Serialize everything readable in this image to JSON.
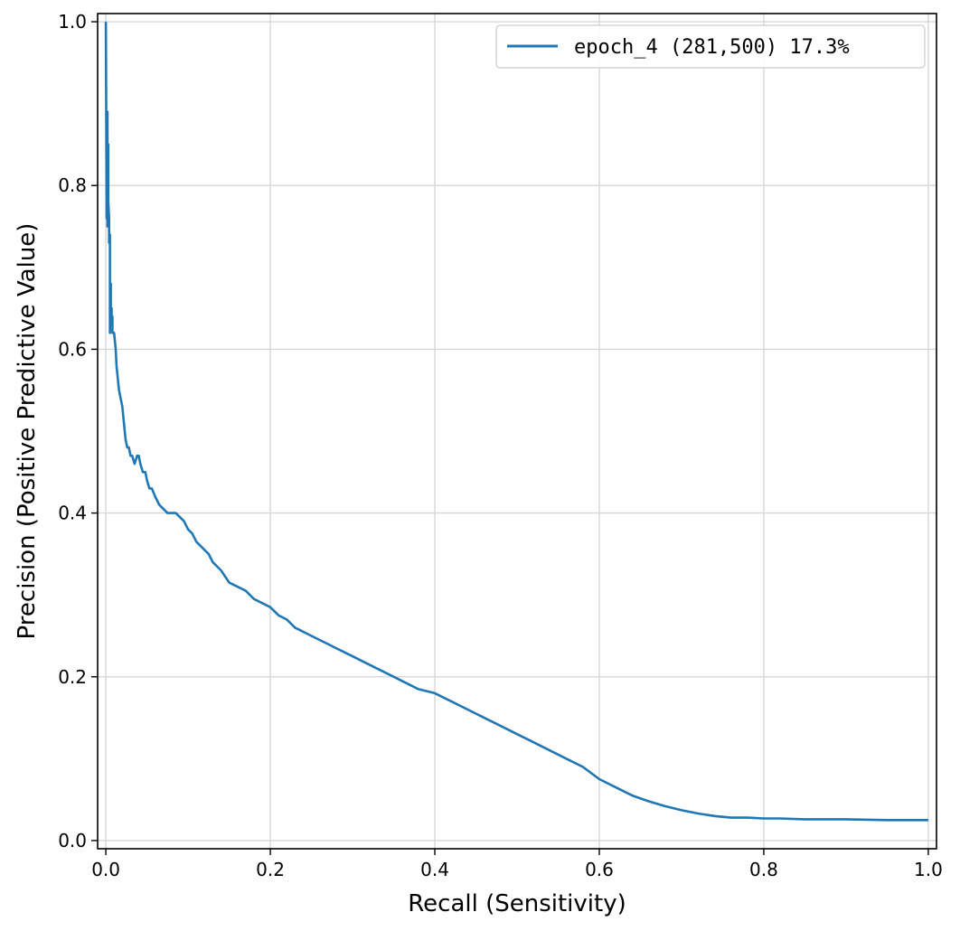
{
  "chart_data": {
    "type": "line",
    "title": "",
    "xlabel": "Recall (Sensitivity)",
    "ylabel": "Precision (Positive Predictive Value)",
    "xlim": [
      -0.01,
      1.01
    ],
    "ylim": [
      -0.01,
      1.01
    ],
    "xticks": [
      0.0,
      0.2,
      0.4,
      0.6,
      0.8,
      1.0
    ],
    "xtick_labels": [
      "0.0",
      "0.2",
      "0.4",
      "0.6",
      "0.8",
      "1.0"
    ],
    "yticks": [
      0.0,
      0.2,
      0.4,
      0.6,
      0.8,
      1.0
    ],
    "ytick_labels": [
      "0.0",
      "0.2",
      "0.4",
      "0.6",
      "0.8",
      "1.0"
    ],
    "grid": true,
    "legend": "top-right",
    "series": [
      {
        "name": "epoch_4 (281,500) 17.3%",
        "color": "#1f77b4",
        "x": [
          0.0,
          0.001,
          0.002,
          0.002,
          0.003,
          0.003,
          0.004,
          0.004,
          0.005,
          0.005,
          0.006,
          0.006,
          0.007,
          0.007,
          0.008,
          0.008,
          0.009,
          0.01,
          0.011,
          0.012,
          0.013,
          0.014,
          0.015,
          0.016,
          0.018,
          0.02,
          0.022,
          0.024,
          0.026,
          0.028,
          0.03,
          0.032,
          0.035,
          0.038,
          0.04,
          0.042,
          0.045,
          0.048,
          0.05,
          0.053,
          0.056,
          0.06,
          0.065,
          0.07,
          0.075,
          0.08,
          0.085,
          0.09,
          0.095,
          0.1,
          0.105,
          0.11,
          0.115,
          0.12,
          0.125,
          0.13,
          0.14,
          0.15,
          0.16,
          0.17,
          0.18,
          0.19,
          0.2,
          0.21,
          0.22,
          0.23,
          0.24,
          0.25,
          0.26,
          0.27,
          0.28,
          0.29,
          0.3,
          0.32,
          0.34,
          0.36,
          0.38,
          0.4,
          0.42,
          0.44,
          0.46,
          0.48,
          0.5,
          0.52,
          0.54,
          0.56,
          0.58,
          0.6,
          0.62,
          0.64,
          0.66,
          0.68,
          0.7,
          0.72,
          0.74,
          0.76,
          0.78,
          0.8,
          0.82,
          0.85,
          0.9,
          0.95,
          1.0
        ],
        "y": [
          1.0,
          0.76,
          0.89,
          0.75,
          0.85,
          0.78,
          0.76,
          0.73,
          0.74,
          0.62,
          0.68,
          0.64,
          0.65,
          0.63,
          0.64,
          0.62,
          0.62,
          0.62,
          0.61,
          0.6,
          0.58,
          0.57,
          0.56,
          0.55,
          0.54,
          0.53,
          0.51,
          0.49,
          0.48,
          0.48,
          0.47,
          0.47,
          0.46,
          0.47,
          0.47,
          0.46,
          0.45,
          0.45,
          0.44,
          0.43,
          0.43,
          0.42,
          0.41,
          0.405,
          0.4,
          0.4,
          0.4,
          0.395,
          0.39,
          0.38,
          0.375,
          0.365,
          0.36,
          0.355,
          0.35,
          0.34,
          0.33,
          0.315,
          0.31,
          0.305,
          0.295,
          0.29,
          0.285,
          0.275,
          0.27,
          0.26,
          0.255,
          0.25,
          0.245,
          0.24,
          0.235,
          0.23,
          0.225,
          0.215,
          0.205,
          0.195,
          0.185,
          0.18,
          0.17,
          0.16,
          0.15,
          0.14,
          0.13,
          0.12,
          0.11,
          0.1,
          0.09,
          0.075,
          0.065,
          0.055,
          0.048,
          0.042,
          0.037,
          0.033,
          0.03,
          0.028,
          0.028,
          0.027,
          0.027,
          0.026,
          0.026,
          0.025,
          0.025
        ]
      }
    ]
  }
}
